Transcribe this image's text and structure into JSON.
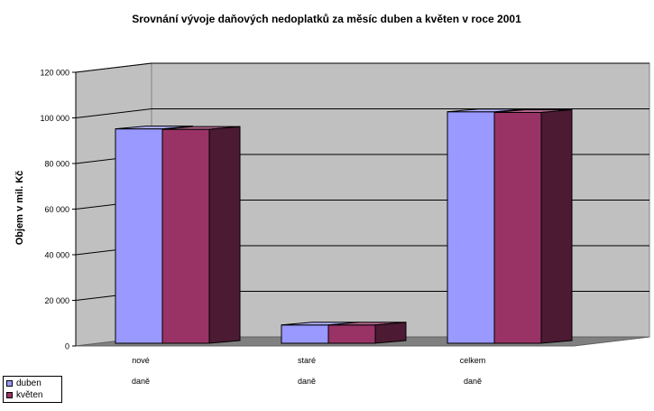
{
  "chart_data": {
    "type": "bar",
    "title": "Srovnání vývoje daňových nedoplatků za měsíc duben a květen v roce 2001",
    "ylabel": "Objem v mil. Kč",
    "xlabel": "",
    "categories": [
      {
        "line1": "nové",
        "line2": "daně"
      },
      {
        "line1": "staré",
        "line2": "daně"
      },
      {
        "line1": "celkem",
        "line2": "daně"
      }
    ],
    "series": [
      {
        "name": "duben",
        "values": [
          94000,
          8000,
          101500
        ],
        "color": "#9999ff"
      },
      {
        "name": "květen",
        "values": [
          93800,
          8000,
          101200
        ],
        "color": "#993366"
      }
    ],
    "ylim": [
      0,
      120000
    ],
    "yticks": [
      "0",
      "20 000",
      "40 000",
      "60 000",
      "80 000",
      "100 000",
      "120 000"
    ],
    "grid": true,
    "legend_position": "bottom-left",
    "wall_color": "#c0c0c0",
    "floor_color": "#808080"
  }
}
